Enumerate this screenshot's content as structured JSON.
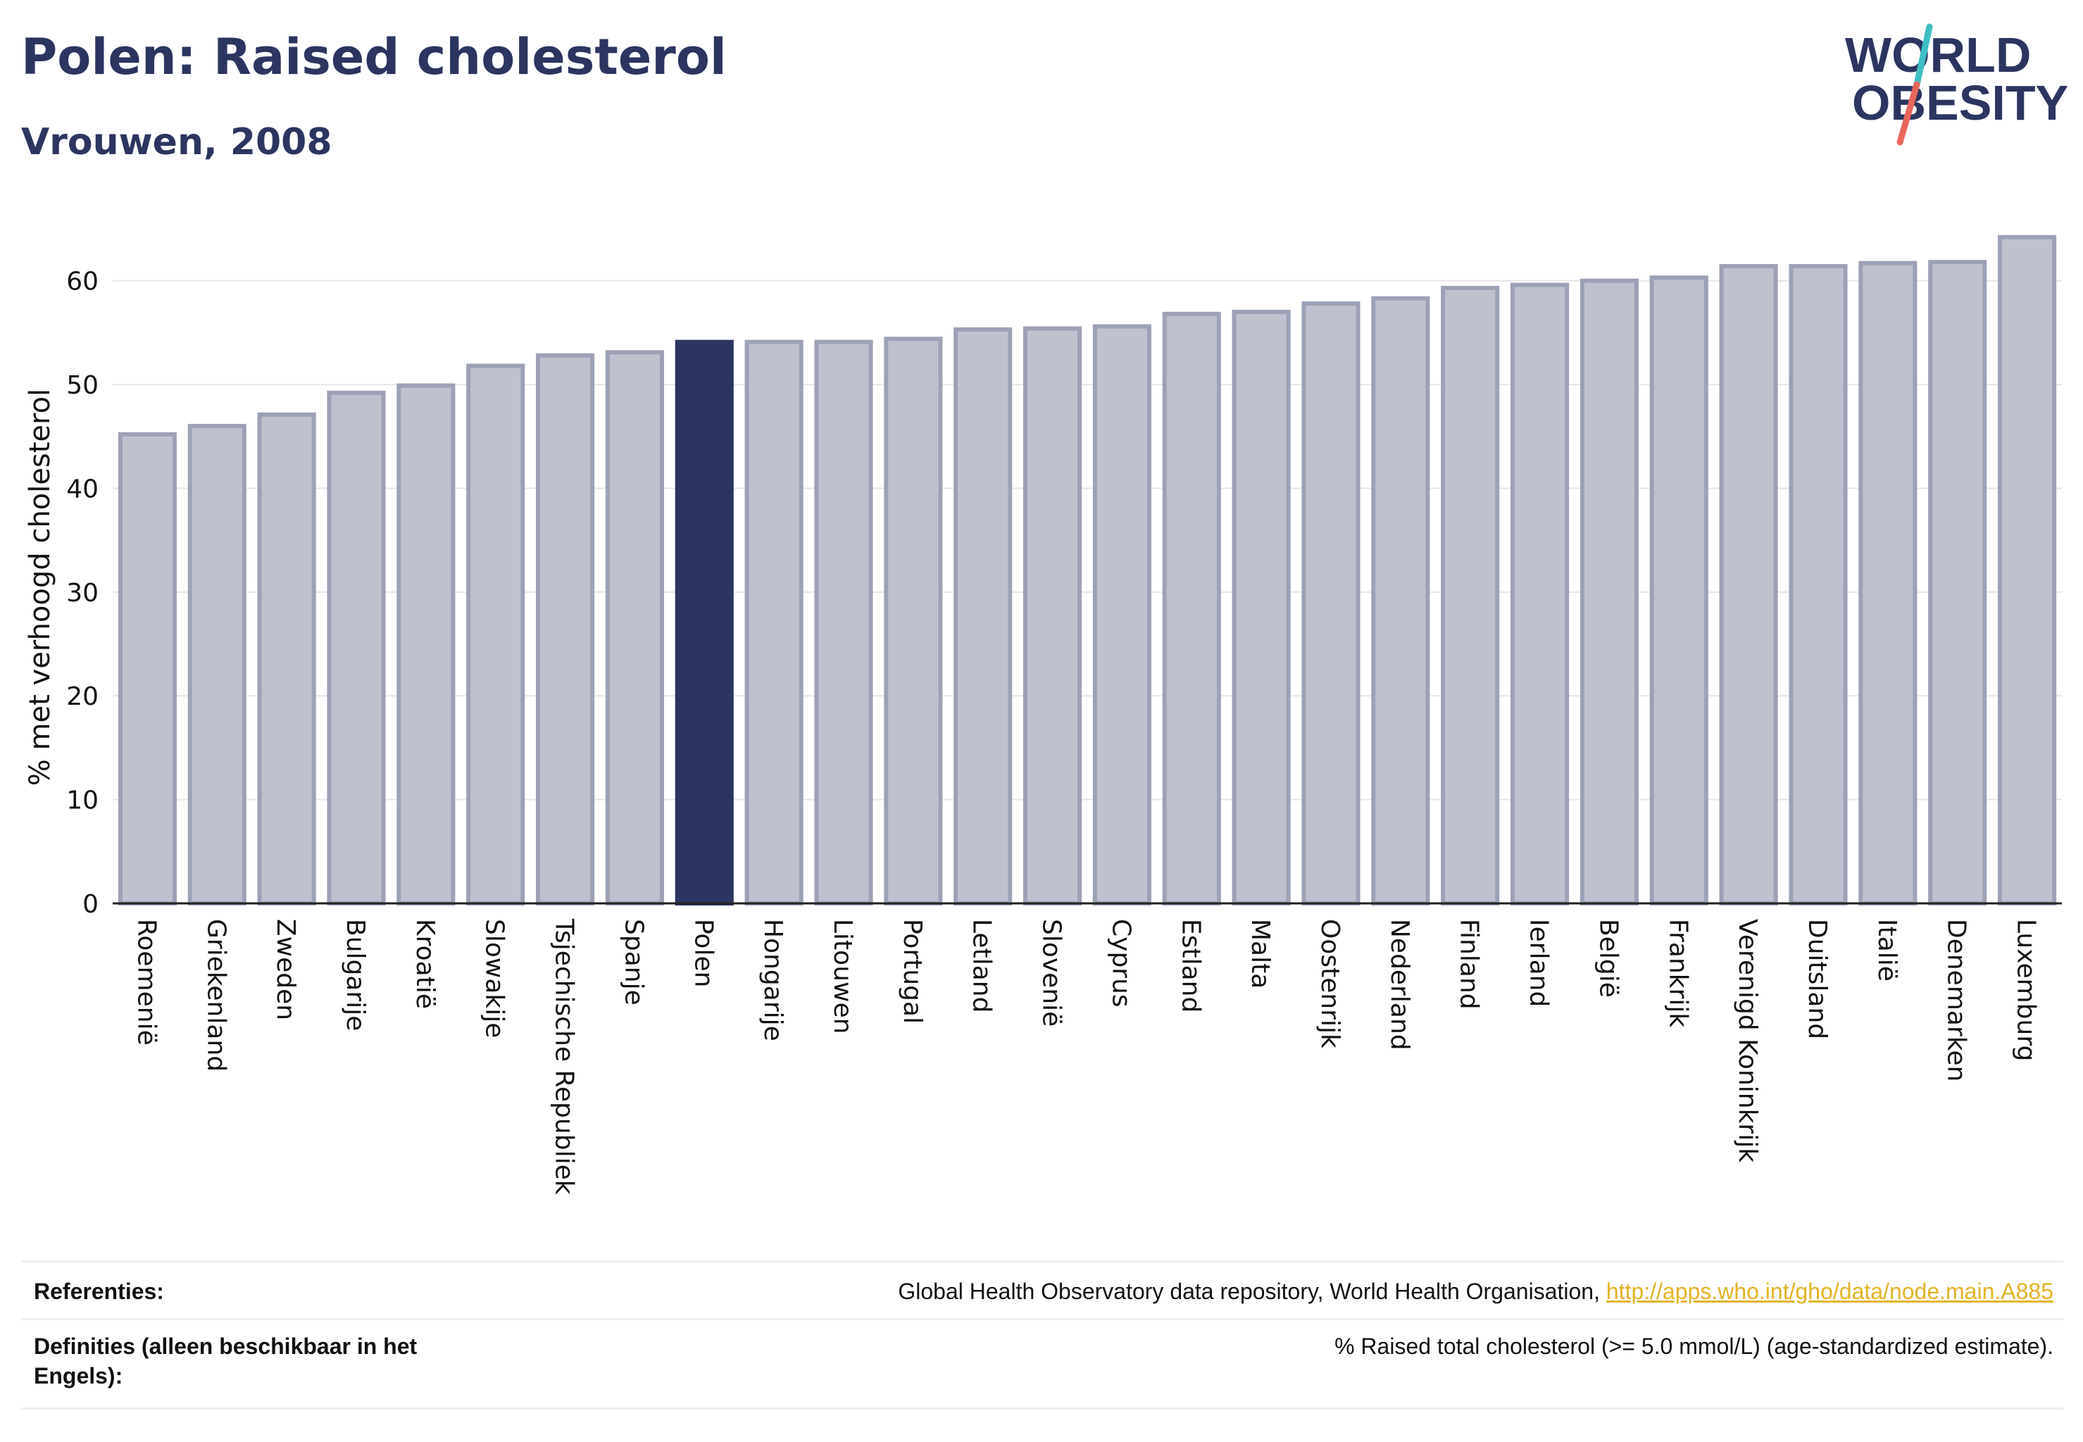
{
  "title": "Polen: Raised cholesterol",
  "subtitle": "Vrouwen, 2008",
  "logo": {
    "line1": "WORLD",
    "line2": "OBESITY"
  },
  "colors": {
    "highlight": "#2b3560",
    "bar_fill": "#bfc2ce",
    "bar_stroke": "#9da1b6",
    "title": "#2b3560",
    "link": "#e2b325",
    "logo_teal": "#3ebfc3",
    "logo_red": "#e8675d"
  },
  "chart_data": {
    "type": "bar",
    "ylabel": "% met verhoogd cholesterol",
    "ylim": [
      0,
      65
    ],
    "yticks": [
      0,
      10,
      20,
      30,
      40,
      50,
      60
    ],
    "grid": true,
    "highlight": "Polen",
    "categories": [
      "Roemenië",
      "Griekenland",
      "Zweden",
      "Bulgarije",
      "Kroatië",
      "Slowakije",
      "Tsjechische Republiek",
      "Spanje",
      "Polen",
      "Hongarije",
      "Litouwen",
      "Portugal",
      "Letland",
      "Slovenië",
      "Cyprus",
      "Estland",
      "Malta",
      "Oostenrijk",
      "Nederland",
      "Finland",
      "Ierland",
      "België",
      "Frankrijk",
      "Verenigd Koninkrijk",
      "Duitsland",
      "Italië",
      "Denemarken",
      "Luxemburg"
    ],
    "values": [
      45.2,
      46.0,
      47.1,
      49.2,
      49.9,
      51.8,
      52.8,
      53.1,
      54.1,
      54.1,
      54.1,
      54.4,
      55.3,
      55.4,
      55.6,
      56.8,
      57.0,
      57.8,
      58.3,
      59.3,
      59.6,
      60.0,
      60.3,
      61.4,
      61.4,
      61.7,
      61.8,
      64.2
    ]
  },
  "footer": {
    "references_label": "Referenties:",
    "references_text": "Global Health Observatory data repository, World Health Organisation, ",
    "references_link": "http://apps.who.int/gho/data/node.main.A885",
    "definitions_label": "Definities (alleen beschikbaar in het Engels):",
    "definitions_text": "% Raised total cholesterol (>= 5.0 mmol/L) (age-standardized estimate)."
  }
}
